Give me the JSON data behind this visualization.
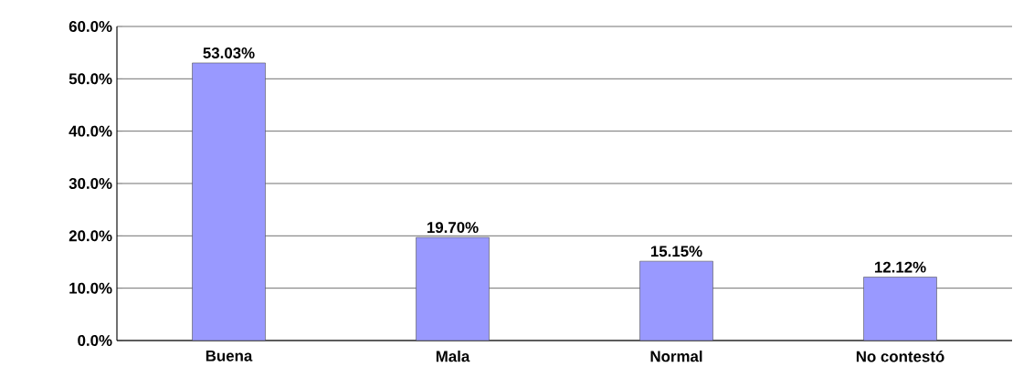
{
  "chart_data": {
    "type": "bar",
    "categories": [
      "Buena",
      "Mala",
      "Normal",
      "No contestó"
    ],
    "values": [
      53.03,
      19.7,
      15.15,
      12.12
    ],
    "value_labels": [
      "53.03%",
      "19.70%",
      "15.15%",
      "12.12%"
    ],
    "color": "#9999ff",
    "ylim": [
      0,
      60
    ],
    "yticks": [
      {
        "value": 0,
        "label": "0.0%"
      },
      {
        "value": 10,
        "label": "10.0%"
      },
      {
        "value": 20,
        "label": "20.0%"
      },
      {
        "value": 30,
        "label": "30.0%"
      },
      {
        "value": 40,
        "label": "40.0%"
      },
      {
        "value": 50,
        "label": "50.0%"
      },
      {
        "value": 60,
        "label": "60.0%"
      }
    ],
    "grid": "y"
  }
}
